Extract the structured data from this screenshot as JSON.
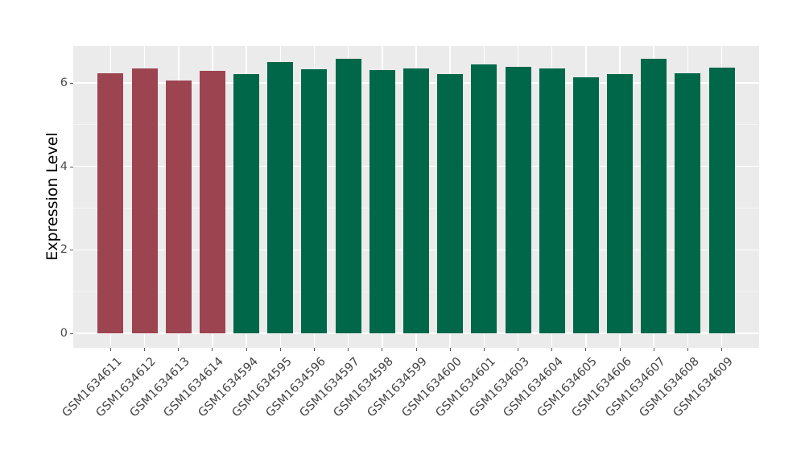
{
  "chart_data": {
    "type": "bar",
    "title": "",
    "xlabel": "",
    "ylabel": "Expression Level",
    "ylim": [
      0,
      6.89
    ],
    "yticks": [
      0,
      2,
      4,
      6
    ],
    "ytick_labels": [
      "0",
      "2",
      "4",
      "6"
    ],
    "yticks_minor": [
      1,
      3,
      5
    ],
    "grid": true,
    "legend": false,
    "panel_style": "ggplot-gray",
    "categories": [
      "GSM1634611",
      "GSM1634612",
      "GSM1634613",
      "GSM1634614",
      "GSM1634594",
      "GSM1634595",
      "GSM1634596",
      "GSM1634597",
      "GSM1634598",
      "GSM1634599",
      "GSM1634600",
      "GSM1634601",
      "GSM1634603",
      "GSM1634604",
      "GSM1634605",
      "GSM1634606",
      "GSM1634607",
      "GSM1634608",
      "GSM1634609"
    ],
    "values": [
      6.23,
      6.34,
      6.06,
      6.29,
      6.21,
      6.51,
      6.32,
      6.57,
      6.3,
      6.35,
      6.22,
      6.44,
      6.38,
      6.34,
      6.14,
      6.22,
      6.57,
      6.24,
      6.37
    ],
    "bar_color_keys": [
      "red",
      "red",
      "red",
      "red",
      "green",
      "green",
      "green",
      "green",
      "green",
      "green",
      "green",
      "green",
      "green",
      "green",
      "green",
      "green",
      "green",
      "green",
      "green"
    ]
  },
  "colors": {
    "red": "#9D4451",
    "green": "#006849",
    "panel_bg": "#EBEBEB",
    "grid_major": "#FFFFFF",
    "grid_minor": "#F4F4F4",
    "tick_mark": "#555555",
    "tick_label": "#4d4d4d",
    "axis_title": "#000000"
  }
}
